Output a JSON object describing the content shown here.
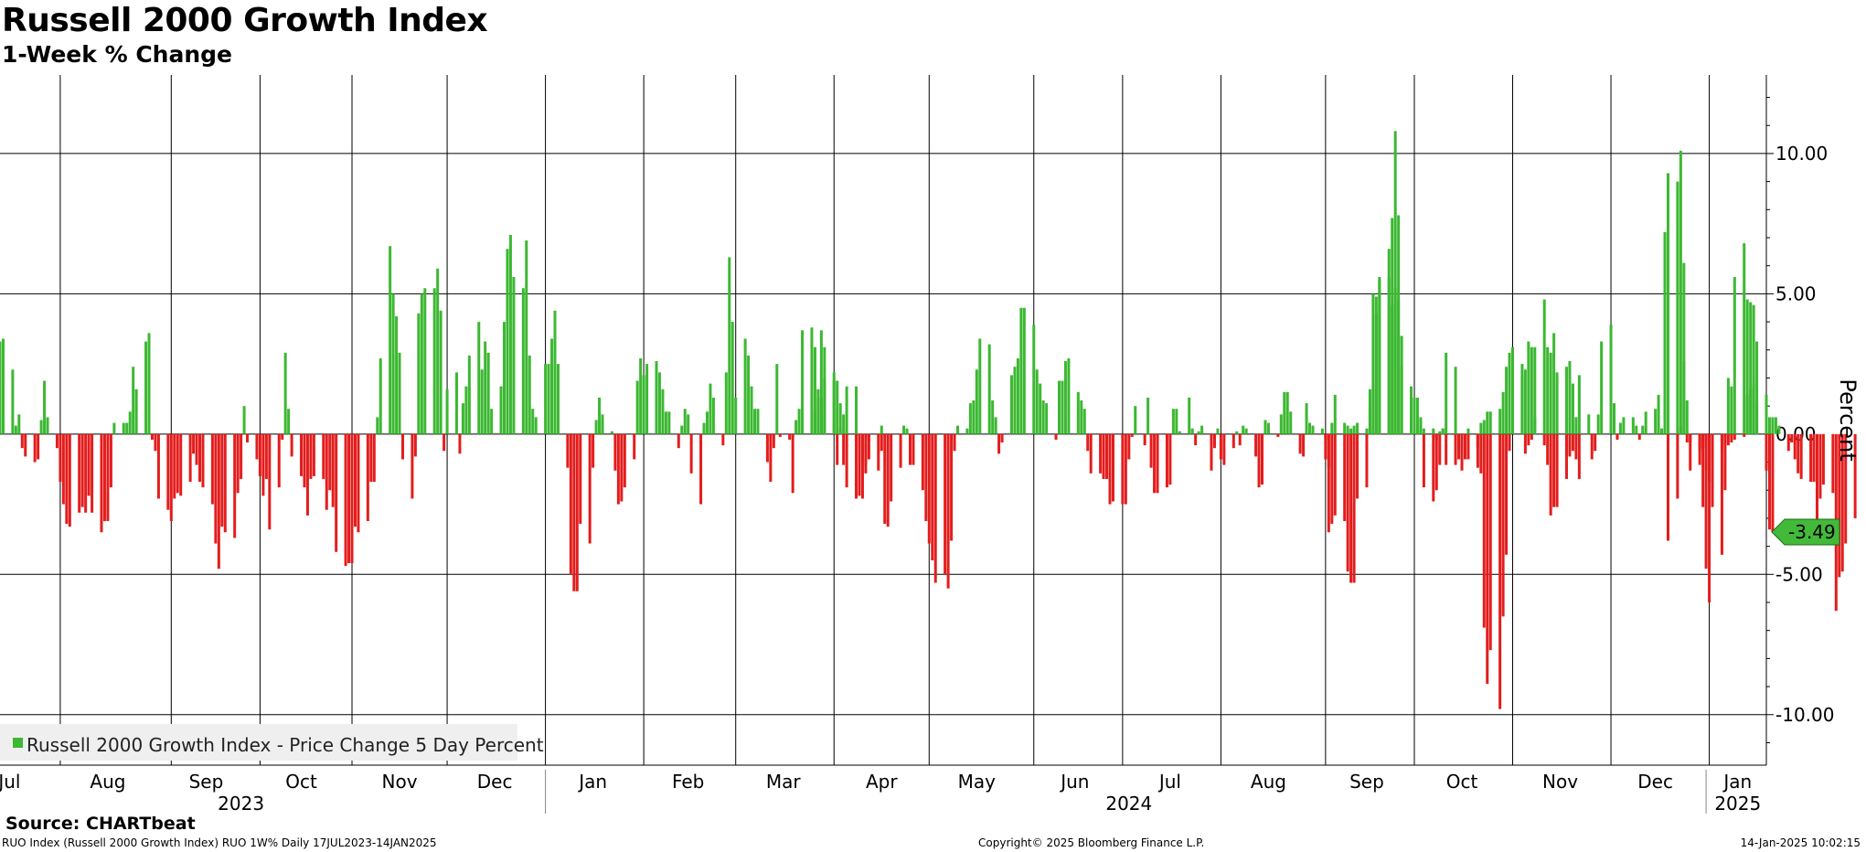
{
  "header": {
    "title": "Russell 2000 Growth Index",
    "subtitle": "1-Week % Change"
  },
  "footer": {
    "source": "Source: CHARTbeat",
    "info_left": "RUO Index (Russell 2000 Growth Index) RUO 1W% Daily 17JUL2023-14JAN2025",
    "copyright": "Copyright© 2025 Bloomberg Finance L.P.",
    "timestamp": "14-Jan-2025 10:02:15"
  },
  "colors": {
    "positive": "#3cb832",
    "negative": "#e31d1d",
    "last_badge": "#43b93a",
    "legend_bg": "#efefef"
  },
  "chart_data": {
    "type": "bar",
    "title": "Russell 2000 Growth Index",
    "subtitle": "1-Week % Change",
    "ylabel": "Percent",
    "ylim": [
      -11.8,
      12.8
    ],
    "y_ticks": [
      10,
      5,
      0,
      -5,
      -10
    ],
    "y_tick_labels": [
      "10.00",
      "5.00",
      "0.00",
      "-5.00",
      "-10.00"
    ],
    "x_range": [
      "2023-07-13",
      "2025-01-20"
    ],
    "month_labels": [
      {
        "label": "Jul",
        "date": "2023-07-16"
      },
      {
        "label": "Aug",
        "date": "2023-08-16"
      },
      {
        "label": "Sep",
        "date": "2023-09-16"
      },
      {
        "label": "Oct",
        "date": "2023-10-16"
      },
      {
        "label": "Nov",
        "date": "2023-11-16"
      },
      {
        "label": "Dec",
        "date": "2023-12-16"
      },
      {
        "label": "Jan",
        "date": "2024-01-16"
      },
      {
        "label": "Feb",
        "date": "2024-02-15"
      },
      {
        "label": "Mar",
        "date": "2024-03-16"
      },
      {
        "label": "Apr",
        "date": "2024-04-16"
      },
      {
        "label": "May",
        "date": "2024-05-16"
      },
      {
        "label": "Jun",
        "date": "2024-06-16"
      },
      {
        "label": "Jul",
        "date": "2024-07-16"
      },
      {
        "label": "Aug",
        "date": "2024-08-16"
      },
      {
        "label": "Sep",
        "date": "2024-09-16"
      },
      {
        "label": "Oct",
        "date": "2024-10-16"
      },
      {
        "label": "Nov",
        "date": "2024-11-16"
      },
      {
        "label": "Dec",
        "date": "2024-12-16"
      },
      {
        "label": "Jan",
        "date": "2025-01-11"
      }
    ],
    "month_lines": [
      "2023-08-01",
      "2023-09-05",
      "2023-10-03",
      "2023-11-01",
      "2023-12-01",
      "2024-01-01",
      "2024-02-01",
      "2024-03-01",
      "2024-04-01",
      "2024-05-01",
      "2024-06-03",
      "2024-07-01",
      "2024-08-01",
      "2024-09-03",
      "2024-10-01",
      "2024-11-01",
      "2024-12-02",
      "2025-01-02"
    ],
    "year_labels": [
      {
        "label": "2023",
        "date": "2023-09-27"
      },
      {
        "label": "2024",
        "date": "2024-07-03"
      },
      {
        "label": "2025",
        "date": "2025-01-11"
      }
    ],
    "year_separators": [
      "2024-01-01",
      "2025-01-01"
    ],
    "legend": {
      "label": "Russell 2000 Growth Index - Price Change 5 Day Percent",
      "position": "bottom-left"
    },
    "last_value": {
      "label": "-3.49",
      "value": -3.49
    },
    "series": [
      {
        "name": "Russell 2000 Growth Index - Price Change 5 Day Percent",
        "segments": [
          {
            "start": "2023-07-13",
            "values": [
              3.3,
              3.4,
              2.3,
              0.3,
              0.7,
              -0.5,
              -0.8,
              -1,
              -0.9,
              0.5,
              1.9,
              0.6,
              -0.5,
              -1.7,
              -2.5,
              -3.2,
              -3.3,
              -2.8,
              -2.6,
              -2.8,
              -2.2,
              -2.8,
              -3.5,
              -3.1,
              -3.1,
              -1.9,
              0.4,
              0.4,
              0.4,
              0.8,
              2.4,
              1.6,
              3.3,
              3.6,
              -0.2,
              -0.6,
              -2.3,
              -2.7,
              -3.1,
              -2.3,
              -2.1,
              -2.2,
              -1.7,
              -0.7,
              -1.1,
              -1.7,
              -1.9,
              -2.5,
              -3.9,
              -4.8,
              -3.3,
              -3.5,
              -3.7,
              -2.1,
              -1.6,
              1,
              -0.3,
              -0.9,
              -1.5,
              -2.2,
              -1.6,
              -3.4,
              -1.9,
              -0.2,
              2.9,
              0.9,
              -0.8,
              -1.5,
              -1.9,
              -2.9,
              -1.6,
              -1.5,
              -1.6,
              -2.7,
              -2,
              -2.6,
              -4.2,
              -4.7,
              -4.6,
              -4.6,
              -3.3,
              -3.5,
              -3.1,
              -1.7,
              -1.7,
              0.6,
              2.7,
              6.7,
              5,
              4.2,
              2.9,
              -0.9,
              -2.3,
              -0.8,
              4.3,
              5,
              5.2,
              5.2,
              5.9,
              4.4,
              -0.6,
              1.6,
              2.2,
              -0.7,
              1.1,
              1.7,
              2.8,
              4,
              2.3,
              3.3,
              2.9,
              0.9,
              1.7,
              4,
              6.6,
              7.1,
              5.6,
              5.2,
              6.9,
              2.8,
              0.9,
              0.6,
              2.5,
              2.5,
              3.4,
              4.4,
              2.5,
              -1.2,
              -5,
              -5.6,
              -5.6,
              -3.2,
              -3.9,
              -1.2,
              0.5,
              1.3
            ]
          },
          {
            "start": "2024-01-18",
            "values": [
              0.5,
              0.7,
              0.1,
              -1.3,
              -2.5,
              -2.4,
              -1.9,
              -0.9,
              1.9,
              2.7,
              2.1,
              2.5,
              2.6,
              2.2,
              1.6,
              0.8,
              0.8,
              -0.5,
              0.3,
              0.9,
              0.7,
              -1.4,
              -2.5,
              0.4,
              0.8,
              1.8,
              1.3,
              -0.4,
              2.2,
              6.3,
              4,
              1.3,
              3.4,
              2.8,
              1.7,
              0.9,
              0.9,
              -1,
              -1.7,
              -0.5,
              2.5,
              -0.1,
              -0.2,
              -2.1,
              0.5,
              0.9,
              3.7,
              3.8,
              3.1,
              1.3,
              3.7,
              3.1,
              1.9,
              -1.1,
              0.2,
              0.7,
              1.7,
              1.7,
              -0.6,
              -0.9,
              -1.1,
              -0.9,
              -1.3,
              0.3
            ]
          },
          {
            "start": "2024-03-26",
            "values": [
              0.8,
              1.6,
              1.3,
              2,
              2.2,
              1.9,
              1.1,
              -1.1,
              -1.9,
              -2.3,
              -2.2,
              -2.3,
              -1.4,
              -0.1
            ]
          },
          {
            "start": "2024-04-16",
            "values": [
              -0.6,
              -3.2,
              -3.3,
              -2.4,
              -1.2,
              0.3,
              0.2,
              -1.1,
              -1.1,
              -2,
              -3.1,
              -3.9,
              -4.5,
              -5.3,
              -5,
              -5.5,
              -3.8,
              -0.6,
              0.3,
              0.2,
              1.1,
              1.2,
              2.3,
              3.4,
              3.2,
              1.2,
              0.6,
              -0.7,
              -0.3,
              2.1,
              2.4,
              2.7,
              4.5,
              4.5,
              3.9,
              2.3,
              1.8,
              1.2,
              1.1,
              -0.2,
              1.9,
              1.9,
              2.6,
              2.7,
              1.5,
              1.2,
              0.9,
              -0.6,
              -1.4,
              -1.4,
              -1.6,
              -1.6,
              -2.5,
              -2.4,
              -2.5,
              -2.5,
              -0.9,
              -0.1,
              1,
              -0.4,
              1.3,
              -1.2,
              -2.1,
              -2.1,
              -1.9,
              -1.8,
              0.9,
              0.9,
              0.1,
              1.3,
              0.2,
              -0.4,
              0.1,
              0.3,
              -1.3,
              -0.5,
              0.2,
              -0.9,
              -1.1,
              -0.5,
              0.1,
              -0.4,
              0.3,
              0.2,
              -0.8,
              -1.9,
              -1.8,
              0.5,
              0.4,
              -0.1,
              0.7,
              1.5,
              1.5,
              0.8,
              -0.7,
              -0.8,
              1.1,
              0.4,
              0.3,
              0.2,
              -0.9,
              -1.2,
              0.4,
              1.4,
              0.4,
              0.3,
              0.2,
              0.3,
              0.4,
              0.2,
              1.6,
              1.6,
              4.3,
              5.6,
              6.6,
              7.7,
              10.8,
              7.8,
              2.4,
              0.5,
              0.4,
              0.3,
              0.5,
              -1.9,
              -2.4,
              -2,
              -1.1,
              0.2,
              2.9,
              2.4,
              -0.9,
              -0.8,
              -0.7,
              0.2,
              -0.5,
              -1.4,
              -6.9,
              -8.9,
              -7.7,
              -9.8,
              -6.5,
              -4.3,
              -0.6,
              1.9,
              2.1,
              2.3,
              3.3,
              3.1,
              3.1,
              4.8,
              3.1,
              2.9,
              3.6,
              2.2,
              2.4,
              2.6,
              1.8,
              -0.9,
              2.1
            ]
          },
          {
            "start": "2024-09-03",
            "values": [
              -0.2,
              -3.5,
              -3.2,
              -2.9,
              -3.1,
              -4.9,
              -5.3,
              -5.3,
              -2.3,
              -1.9,
              0.9,
              5,
              4.9,
              5.5,
              5.6,
              4.6,
              5.2,
              4.8,
              3.5,
              1.7,
              1.3,
              1.3,
              0.6,
              0.2,
              0.2,
              -0.2,
              0.1,
              0.2,
              -1.1,
              -1.1,
              -0.6,
              -1.3,
              -0.9,
              -0.9,
              -1.2,
              0.4,
              0.5,
              0.8,
              0.8,
              0.9,
              1.5,
              2.4,
              2.9,
              3.1,
              2.5,
              -0.7,
              -0.4,
              -0.2,
              0.6,
              -0.4,
              -1.1,
              -2.9,
              -2.6,
              -2.6,
              -1.6,
              -0.8,
              -0.6,
              0.6,
              -1.6,
              0.7,
              -0.9,
              -0.6,
              0.7,
              3.3,
              3.9,
              1.1,
              -0.2,
              0.4,
              0.6,
              0.6,
              0.3,
              -0.2,
              0.3,
              0.8,
              0.9,
              1.4,
              0.2,
              7.2,
              9.3,
              9,
              10.1,
              6.1,
              -0.3,
              -0.3,
              -1.1,
              -2.6,
              -4.8,
              -6,
              -2.6,
              -4.3,
              -2,
              2,
              1.7,
              5.6,
              6.8,
              4.8,
              4.7,
              4.6,
              3.3,
              1.4,
              0.6,
              0.6,
              0.6,
              0.3,
              -0.6,
              -0.3,
              -0.9,
              -1.4,
              -1.6,
              -1.7,
              -1.7,
              -3.2,
              -2.3,
              -1.8,
              -2.1,
              -6.3,
              -5.1,
              -4.9,
              -3.9,
              -3
            ]
          },
          {
            "start": "2024-12-20",
            "values": [
              -3.8,
              -2.3,
              0.3,
              2.6,
              1.2,
              -1.3,
              -0.6,
              -0.5,
              -1.3,
              -1.7,
              -0.9,
              -0.6,
              -0.4,
              -0.4,
              -0.3,
              -0.2,
              -0.1,
              1.4,
              1.6,
              1.8,
              1.1,
              -1.3,
              -3.4,
              -3.49
            ]
          }
        ]
      }
    ]
  }
}
